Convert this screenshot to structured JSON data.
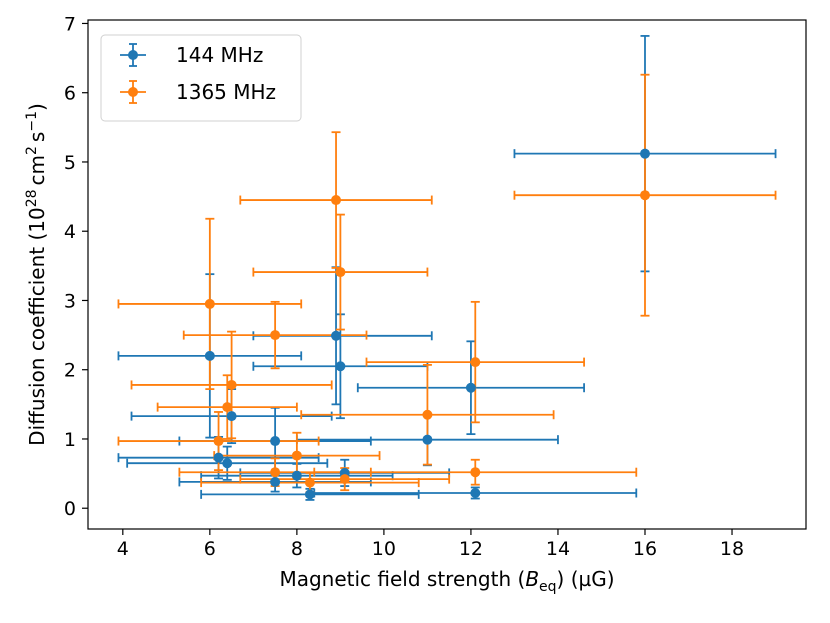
{
  "chart_data": {
    "type": "scatter",
    "title": "",
    "xlabel": {
      "prefix": "Magnetic field strength (",
      "var": "B",
      "sub": "eq",
      "suffix": ") (µG)"
    },
    "ylabel": {
      "prefix": "Diffusion coefficient (10",
      "exp": "28",
      "mid": " cm",
      "exp2": "2",
      "mid2": " s",
      "exp3": "−1",
      "suffix": ")"
    },
    "xlim": [
      3.2,
      19.7
    ],
    "ylim": [
      -0.3,
      7.05
    ],
    "xticks": [
      4,
      6,
      8,
      10,
      12,
      14,
      16,
      18
    ],
    "yticks": [
      0,
      1,
      2,
      3,
      4,
      5,
      6,
      7
    ],
    "legend_position": "top-left",
    "series": [
      {
        "name": "144 MHz",
        "color": "#1f77b4",
        "points": [
          {
            "x": 16.0,
            "y": 5.12,
            "xerr": [
              3.0,
              3.0
            ],
            "yerr": [
              1.7,
              1.7
            ]
          },
          {
            "x": 8.9,
            "y": 2.49,
            "xerr": [
              1.9,
              2.2
            ],
            "yerr": [
              0.99,
              0.99
            ]
          },
          {
            "x": 9.0,
            "y": 2.05,
            "xerr": [
              2.0,
              2.0
            ],
            "yerr": [
              0.75,
              0.75
            ]
          },
          {
            "x": 6.0,
            "y": 2.2,
            "xerr": [
              2.1,
              2.1
            ],
            "yerr": [
              1.18,
              1.18
            ]
          },
          {
            "x": 12.0,
            "y": 1.74,
            "xerr": [
              2.6,
              2.6
            ],
            "yerr": [
              0.67,
              0.67
            ]
          },
          {
            "x": 6.5,
            "y": 1.33,
            "xerr": [
              2.3,
              2.3
            ],
            "yerr": [
              0.39,
              0.39
            ]
          },
          {
            "x": 11.0,
            "y": 0.99,
            "xerr": [
              3.0,
              3.0
            ],
            "yerr": [
              0.37,
              0.37
            ]
          },
          {
            "x": 7.5,
            "y": 0.97,
            "xerr": [
              2.2,
              2.2
            ],
            "yerr": [
              0.48,
              0.48
            ]
          },
          {
            "x": 6.2,
            "y": 0.73,
            "xerr": [
              2.3,
              2.3
            ],
            "yerr": [
              0.3,
              0.3
            ]
          },
          {
            "x": 6.4,
            "y": 0.65,
            "xerr": [
              2.3,
              2.3
            ],
            "yerr": [
              0.24,
              0.24
            ]
          },
          {
            "x": 8.0,
            "y": 0.47,
            "xerr": [
              2.2,
              2.2
            ],
            "yerr": [
              0.17,
              0.17
            ]
          },
          {
            "x": 7.5,
            "y": 0.38,
            "xerr": [
              2.2,
              2.2
            ],
            "yerr": [
              0.14,
              0.14
            ]
          },
          {
            "x": 9.1,
            "y": 0.51,
            "xerr": [
              2.4,
              2.4
            ],
            "yerr": [
              0.19,
              0.19
            ]
          },
          {
            "x": 8.3,
            "y": 0.2,
            "xerr": [
              2.5,
              2.5
            ],
            "yerr": [
              0.08,
              0.08
            ]
          },
          {
            "x": 12.1,
            "y": 0.22,
            "xerr": [
              3.7,
              3.7
            ],
            "yerr": [
              0.08,
              0.08
            ]
          }
        ]
      },
      {
        "name": "1365 MHz",
        "color": "#ff7f0e",
        "points": [
          {
            "x": 16.0,
            "y": 4.52,
            "xerr": [
              3.0,
              3.0
            ],
            "yerr": [
              1.74,
              1.74
            ]
          },
          {
            "x": 8.9,
            "y": 4.45,
            "xerr": [
              2.2,
              2.2
            ],
            "yerr": [
              0.98,
              0.98
            ]
          },
          {
            "x": 9.0,
            "y": 3.41,
            "xerr": [
              2.0,
              2.0
            ],
            "yerr": [
              0.83,
              0.83
            ]
          },
          {
            "x": 6.0,
            "y": 2.95,
            "xerr": [
              2.1,
              2.1
            ],
            "yerr": [
              1.23,
              1.23
            ]
          },
          {
            "x": 7.5,
            "y": 2.5,
            "xerr": [
              2.1,
              2.1
            ],
            "yerr": [
              0.48,
              0.48
            ]
          },
          {
            "x": 12.1,
            "y": 2.11,
            "xerr": [
              2.5,
              2.5
            ],
            "yerr": [
              0.87,
              0.87
            ]
          },
          {
            "x": 6.5,
            "y": 1.78,
            "xerr": [
              2.3,
              2.3
            ],
            "yerr": [
              0.77,
              0.77
            ]
          },
          {
            "x": 6.4,
            "y": 1.46,
            "xerr": [
              1.6,
              1.6
            ],
            "yerr": [
              0.46,
              0.46
            ]
          },
          {
            "x": 11.0,
            "y": 1.35,
            "xerr": [
              2.9,
              2.9
            ],
            "yerr": [
              0.72,
              0.72
            ]
          },
          {
            "x": 6.2,
            "y": 0.97,
            "xerr": [
              2.3,
              2.3
            ],
            "yerr": [
              0.42,
              0.42
            ]
          },
          {
            "x": 8.0,
            "y": 0.76,
            "xerr": [
              1.9,
              1.9
            ],
            "yerr": [
              0.33,
              0.33
            ]
          },
          {
            "x": 12.1,
            "y": 0.52,
            "xerr": [
              3.7,
              3.7
            ],
            "yerr": [
              0.18,
              0.18
            ]
          },
          {
            "x": 7.5,
            "y": 0.52,
            "xerr": [
              2.2,
              2.2
            ],
            "yerr": [
              0.2,
              0.2
            ]
          },
          {
            "x": 9.1,
            "y": 0.42,
            "xerr": [
              2.4,
              2.4
            ],
            "yerr": [
              0.16,
              0.16
            ]
          },
          {
            "x": 8.3,
            "y": 0.37,
            "xerr": [
              2.5,
              2.5
            ],
            "yerr": [
              0.14,
              0.14
            ]
          }
        ]
      }
    ]
  }
}
